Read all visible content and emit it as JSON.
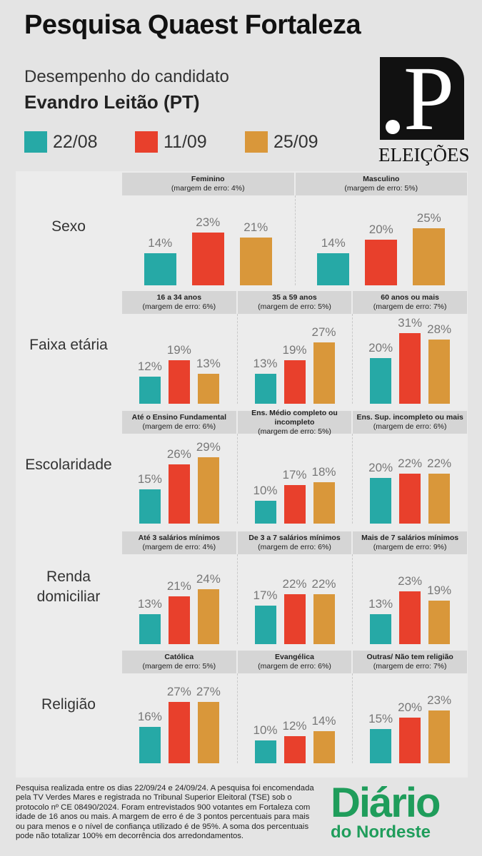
{
  "header": {
    "title": "Pesquisa Quaest Fortaleza",
    "subtitle": "Desempenho do candidato",
    "candidate": "Evandro Leitão (PT)"
  },
  "logo": {
    "mark": ".P",
    "text": "ELEIÇÕES"
  },
  "chart_data": {
    "type": "bar",
    "legend": [
      {
        "name": "22/08",
        "color": "#26a9a6"
      },
      {
        "name": "11/09",
        "color": "#e8402c"
      },
      {
        "name": "25/09",
        "color": "#d9973a"
      }
    ],
    "legend_position": "top-left",
    "unit": "%",
    "groups": [
      {
        "label": "Sexo",
        "segments": [
          {
            "name": "Feminino",
            "margin": "(margem de erro: 4%)",
            "values": [
              14,
              23,
              21
            ]
          },
          {
            "name": "Masculino",
            "margin": "(margem de erro: 5%)",
            "values": [
              14,
              20,
              25
            ]
          }
        ]
      },
      {
        "label": "Faixa etária",
        "segments": [
          {
            "name": "16 a 34 anos",
            "margin": "(margem de erro: 6%)",
            "values": [
              12,
              19,
              13
            ]
          },
          {
            "name": "35 a 59 anos",
            "margin": "(margem de erro: 5%)",
            "values": [
              13,
              19,
              27
            ]
          },
          {
            "name": "60 anos ou mais",
            "margin": "(margem de erro: 7%)",
            "values": [
              20,
              31,
              28
            ]
          }
        ]
      },
      {
        "label": "Escolaridade",
        "segments": [
          {
            "name": "Até o Ensino Fundamental",
            "margin": "(margem de erro: 6%)",
            "values": [
              15,
              26,
              29
            ]
          },
          {
            "name": "Ens. Médio completo ou incompleto",
            "margin": "(margem de erro: 5%)",
            "values": [
              10,
              17,
              18
            ]
          },
          {
            "name": "Ens. Sup. incompleto ou mais",
            "margin": "(margem de erro: 6%)",
            "values": [
              20,
              22,
              22
            ]
          }
        ]
      },
      {
        "label": "Renda domiciliar",
        "segments": [
          {
            "name": "Até 3 salários mínimos",
            "margin": "(margem de erro: 4%)",
            "values": [
              13,
              21,
              24
            ]
          },
          {
            "name": "De 3 a 7 salários mínimos",
            "margin": "(margem de erro: 6%)",
            "values": [
              17,
              22,
              22
            ]
          },
          {
            "name": "Mais de 7 salários mínimos",
            "margin": "(margem de erro: 9%)",
            "values": [
              13,
              23,
              19
            ]
          }
        ]
      },
      {
        "label": "Religião",
        "segments": [
          {
            "name": "Católica",
            "margin": "(margem de erro: 5%)",
            "values": [
              16,
              27,
              27
            ]
          },
          {
            "name": "Evangélica",
            "margin": "(margem de erro: 6%)",
            "values": [
              10,
              12,
              14
            ]
          },
          {
            "name": "Outras/ Não tem religião",
            "margin": "(margem de erro: 7%)",
            "values": [
              15,
              20,
              23
            ]
          }
        ]
      }
    ]
  },
  "footnote": "Pesquisa realizada entre os dias 22/09/24 e 24/09/24. A pesquisa foi encomendada pela TV Verdes Mares e registrada no Tribunal Superior Eleitoral (TSE) sob o protocolo nº CE 08490/2024. Foram entrevistados 900 votantes em Fortaleza com idade de 16 anos ou mais. A margem de erro é de 3 pontos percentuais para mais ou para menos e o nível de confiança utilizado é de 95%. A soma dos percentuais pode não totalizar 100% em decorrência dos arredondamentos.",
  "brand": {
    "line1": "Diário",
    "line2": "do Nordeste"
  }
}
